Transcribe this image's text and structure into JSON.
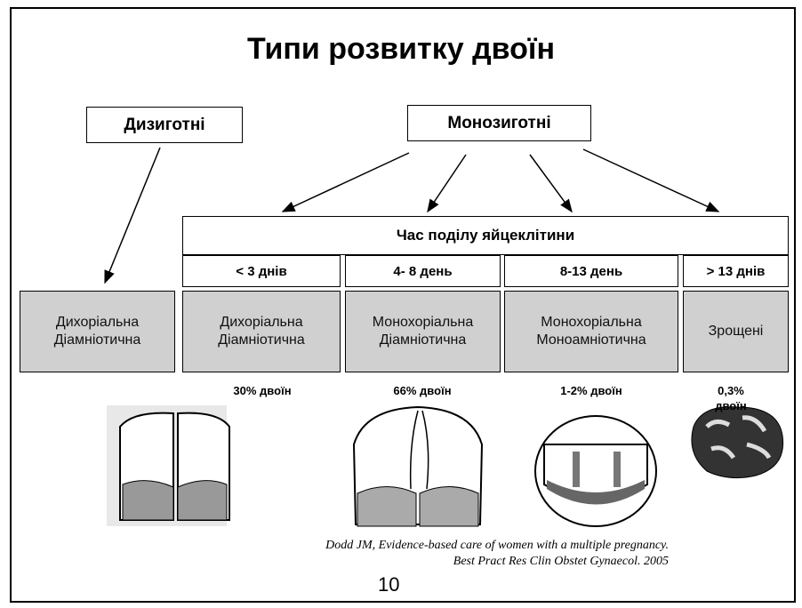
{
  "title": "Типи розвитку двоїн",
  "dizygotic": "Дизиготні",
  "monozygotic": "Монозиготні",
  "division_header": "Час поділу яйцеклітини",
  "periods": [
    "< 3 днів",
    "4- 8 день",
    "8-13 день",
    "> 13 днів"
  ],
  "types": [
    [
      "Дихоріальна",
      "Діамніотична"
    ],
    [
      "Дихоріальна",
      "Діамніотична"
    ],
    [
      "Монохоріальна",
      "Діамніотична"
    ],
    [
      "Монохоріальна",
      "Моноамніотична"
    ],
    [
      "Зрощені"
    ]
  ],
  "percentages": [
    [
      "30% двоїн"
    ],
    [
      "66% двоїн"
    ],
    [
      "1-2% двоїн"
    ],
    [
      "0,3%",
      "двоїн"
    ]
  ],
  "citation": [
    "Dodd JM, Evidence-based care of women with a multiple pregnancy.",
    "Best Pract Res Clin Obstet Gynaecol. 2005"
  ],
  "page_number": "10"
}
